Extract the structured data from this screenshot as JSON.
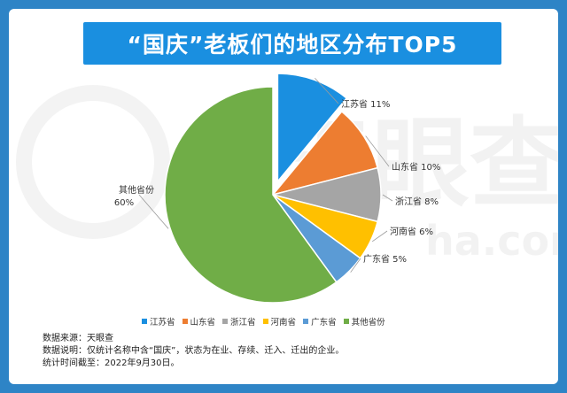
{
  "title": "“国庆”老板们的地区分布TOP5",
  "watermark": {
    "brand_text": "天眼查",
    "url_text": "ha.com"
  },
  "colors": {
    "background": "#2e84c6",
    "title_bar": "#1a8fe0"
  },
  "chart_data": {
    "type": "pie",
    "title": "“国庆”老板们的地区分布TOP5",
    "legend_position": "bottom",
    "slices": [
      {
        "name": "江苏省",
        "value": 11,
        "label": "江苏省 11%",
        "color": "#1a8fe0",
        "exploded": true
      },
      {
        "name": "山东省",
        "value": 10,
        "label": "山东省 10%",
        "color": "#ed7d31",
        "exploded": false
      },
      {
        "name": "浙江省",
        "value": 8,
        "label": "浙江省 8%",
        "color": "#a5a5a5",
        "exploded": false
      },
      {
        "name": "河南省",
        "value": 6,
        "label": "河南省 6%",
        "color": "#ffc000",
        "exploded": false
      },
      {
        "name": "广东省",
        "value": 5,
        "label": "广东省 5%",
        "color": "#5b9bd5",
        "exploded": false
      },
      {
        "name": "其他省份",
        "value": 60,
        "label_line1": "其他省份",
        "label_line2": "60%",
        "color": "#70ad47",
        "exploded": false
      }
    ]
  },
  "legend": [
    {
      "label": "江苏省",
      "color": "#1a8fe0"
    },
    {
      "label": "山东省",
      "color": "#ed7d31"
    },
    {
      "label": "浙江省",
      "color": "#a5a5a5"
    },
    {
      "label": "河南省",
      "color": "#ffc000"
    },
    {
      "label": "广东省",
      "color": "#5b9bd5"
    },
    {
      "label": "其他省份",
      "color": "#70ad47"
    }
  ],
  "notes": {
    "source": "数据来源：天眼查",
    "description": "数据说明：仅统计名称中含“国庆”，状态为在业、存续、迁入、迁出的企业。",
    "cutoff": "统计时间截至：2022年9月30日。"
  }
}
